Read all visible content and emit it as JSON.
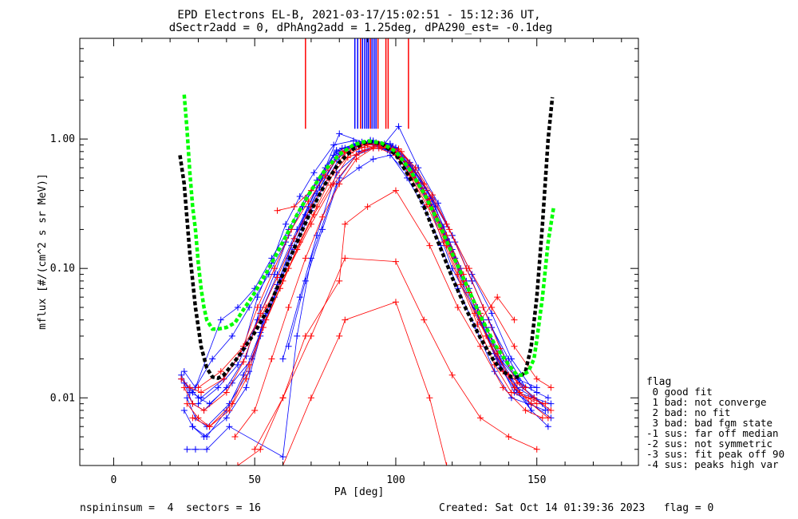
{
  "chart_data": {
    "type": "line",
    "title_line1": "EPD Electrons EL-B, 2021-03-17/15:02:51 - 15:12:36 UT,",
    "title_line2": "dSectr2add = 0, dPhAng2add = 1.25deg, dPA290_est=  -0.1deg",
    "xlabel": "PA [deg]",
    "ylabel": "mflux [#/(cm^2 s sr MeV)]",
    "xlim": [
      -12,
      186
    ],
    "ylim": [
      0.003,
      6
    ],
    "yscale": "log",
    "x_ticks": [
      0,
      50,
      100,
      150
    ],
    "y_ticks": [
      {
        "value": 0.01,
        "label": "0.01"
      },
      {
        "value": 0.1,
        "label": "0.10"
      },
      {
        "value": 1.0,
        "label": "1.00"
      }
    ],
    "marker_lines": [
      {
        "x": 68,
        "color": "red"
      },
      {
        "x": 85.5,
        "color": "blue"
      },
      {
        "x": 86.5,
        "color": "blue"
      },
      {
        "x": 87.5,
        "color": "red"
      },
      {
        "x": 88.2,
        "color": "blue"
      },
      {
        "x": 89.0,
        "color": "blue"
      },
      {
        "x": 89.7,
        "color": "blue"
      },
      {
        "x": 90.3,
        "color": "blue"
      },
      {
        "x": 91.0,
        "color": "red"
      },
      {
        "x": 91.6,
        "color": "blue"
      },
      {
        "x": 92.3,
        "color": "blue"
      },
      {
        "x": 93.0,
        "color": "blue"
      },
      {
        "x": 93.7,
        "color": "red"
      },
      {
        "x": 96.5,
        "color": "red"
      },
      {
        "x": 97.3,
        "color": "red"
      },
      {
        "x": 104.5,
        "color": "red"
      }
    ],
    "fit_curves": [
      {
        "color": "#000000",
        "x": [
          23.5,
          25,
          27,
          29,
          31,
          33,
          35,
          37,
          39,
          42,
          45,
          50,
          55,
          60,
          65,
          70,
          75,
          80,
          85,
          90,
          95,
          100,
          105,
          110,
          115,
          120,
          125,
          130,
          135,
          138,
          141,
          144,
          146,
          148,
          150,
          152,
          154,
          155.5
        ],
        "y": [
          0.75,
          0.45,
          0.13,
          0.05,
          0.025,
          0.017,
          0.0145,
          0.0142,
          0.015,
          0.018,
          0.022,
          0.032,
          0.05,
          0.09,
          0.16,
          0.28,
          0.45,
          0.66,
          0.84,
          0.96,
          0.92,
          0.76,
          0.5,
          0.3,
          0.16,
          0.085,
          0.048,
          0.029,
          0.019,
          0.016,
          0.0145,
          0.0145,
          0.016,
          0.025,
          0.06,
          0.22,
          1.0,
          2.1
        ]
      },
      {
        "color": "#00ff00",
        "x": [
          25,
          26,
          27,
          28,
          29,
          30,
          31,
          32,
          33,
          35,
          37,
          40,
          43,
          46,
          50,
          55,
          60,
          65,
          70,
          75,
          80,
          85,
          90,
          95,
          100,
          105,
          110,
          115,
          120,
          125,
          130,
          135,
          140,
          143,
          145,
          147,
          149,
          150,
          152,
          154,
          156
        ],
        "y": [
          2.2,
          1.2,
          0.55,
          0.3,
          0.2,
          0.11,
          0.07,
          0.05,
          0.04,
          0.034,
          0.034,
          0.035,
          0.038,
          0.048,
          0.065,
          0.1,
          0.16,
          0.26,
          0.4,
          0.58,
          0.76,
          0.9,
          0.97,
          0.93,
          0.8,
          0.58,
          0.38,
          0.23,
          0.13,
          0.075,
          0.043,
          0.026,
          0.018,
          0.015,
          0.015,
          0.016,
          0.02,
          0.028,
          0.06,
          0.16,
          0.3
        ]
      }
    ],
    "series": [
      {
        "color": "#0000ff",
        "x": [
          25,
          28,
          32,
          40,
          47,
          52,
          57,
          62,
          67,
          72,
          79,
          87,
          92,
          99,
          106,
          112,
          118,
          124,
          130,
          137,
          143,
          149,
          154
        ],
        "y": [
          0.013,
          0.009,
          0.008,
          0.012,
          0.021,
          0.05,
          0.09,
          0.18,
          0.3,
          0.48,
          0.82,
          0.92,
          0.95,
          0.85,
          0.55,
          0.33,
          0.17,
          0.08,
          0.04,
          0.018,
          0.012,
          0.01,
          0.008
        ]
      },
      {
        "color": "#0000ff",
        "x": [
          26,
          29,
          33,
          41,
          48,
          53,
          58,
          63,
          68,
          73,
          80,
          86,
          91,
          98,
          105,
          111,
          117,
          123,
          129,
          136,
          142,
          148,
          155
        ],
        "y": [
          0.01,
          0.007,
          0.006,
          0.009,
          0.016,
          0.04,
          0.075,
          0.15,
          0.26,
          0.42,
          0.78,
          0.9,
          0.96,
          0.9,
          0.62,
          0.36,
          0.19,
          0.09,
          0.045,
          0.02,
          0.011,
          0.009,
          0.007
        ]
      },
      {
        "color": "#0000ff",
        "x": [
          24,
          27,
          31,
          39,
          46,
          51,
          56,
          61,
          66,
          71,
          78,
          85,
          90,
          97,
          104,
          110,
          116,
          122,
          128,
          135,
          141,
          147,
          153
        ],
        "y": [
          0.015,
          0.011,
          0.01,
          0.014,
          0.024,
          0.06,
          0.11,
          0.22,
          0.36,
          0.55,
          0.9,
          0.97,
          0.92,
          0.82,
          0.5,
          0.3,
          0.15,
          0.07,
          0.036,
          0.016,
          0.01,
          0.009,
          0.008
        ]
      },
      {
        "color": "#0000ff",
        "x": [
          25,
          28,
          32,
          40,
          47,
          52,
          57,
          62,
          67,
          72,
          79,
          86,
          91,
          98,
          105,
          111,
          117,
          123,
          129,
          136,
          142,
          148,
          154
        ],
        "y": [
          0.008,
          0.006,
          0.005,
          0.007,
          0.012,
          0.03,
          0.06,
          0.12,
          0.22,
          0.38,
          0.7,
          0.88,
          0.98,
          0.92,
          0.66,
          0.4,
          0.21,
          0.1,
          0.05,
          0.022,
          0.012,
          0.008,
          0.006
        ]
      },
      {
        "color": "#0000ff",
        "x": [
          27,
          30,
          34,
          42,
          49,
          54,
          59,
          64,
          69,
          74,
          81,
          87,
          92,
          99,
          106,
          112,
          118,
          124,
          130,
          137,
          143,
          149,
          155
        ],
        "y": [
          0.012,
          0.01,
          0.009,
          0.013,
          0.02,
          0.045,
          0.085,
          0.17,
          0.3,
          0.5,
          0.85,
          0.93,
          0.9,
          0.8,
          0.52,
          0.31,
          0.16,
          0.075,
          0.038,
          0.017,
          0.011,
          0.01,
          0.009
        ]
      },
      {
        "color": "#0000ff",
        "x": [
          26,
          29,
          33,
          41,
          60,
          65,
          70,
          79,
          87,
          92,
          98,
          110,
          120,
          137,
          148
        ],
        "y": [
          0.004,
          0.004,
          0.004,
          0.006,
          0.0035,
          0.03,
          0.12,
          0.45,
          0.6,
          0.7,
          0.75,
          0.4,
          0.1,
          0.02,
          0.008
        ]
      },
      {
        "color": "#0000ff",
        "x": [
          25,
          29,
          38,
          44,
          50,
          56,
          62,
          68,
          75,
          80,
          88,
          95,
          102,
          108,
          114,
          120,
          126,
          132,
          138,
          144,
          150,
          154
        ],
        "y": [
          0.016,
          0.012,
          0.04,
          0.05,
          0.07,
          0.12,
          0.2,
          0.35,
          0.6,
          1.1,
          0.95,
          0.88,
          0.7,
          0.45,
          0.26,
          0.14,
          0.07,
          0.035,
          0.02,
          0.013,
          0.011,
          0.01
        ]
      },
      {
        "color": "#0000ff",
        "x": [
          28,
          33,
          40,
          46,
          52,
          58,
          64,
          70,
          76,
          82,
          89,
          96,
          101,
          108,
          115,
          121,
          127,
          133,
          139,
          145,
          152
        ],
        "y": [
          0.006,
          0.005,
          0.008,
          0.015,
          0.032,
          0.07,
          0.14,
          0.28,
          0.5,
          0.85,
          0.9,
          0.92,
          1.25,
          0.6,
          0.32,
          0.16,
          0.08,
          0.04,
          0.02,
          0.012,
          0.009
        ]
      },
      {
        "color": "#0000ff",
        "x": [
          24,
          28,
          35,
          42,
          48,
          55,
          61,
          67,
          73,
          79,
          86,
          93,
          100,
          107,
          113,
          119,
          125,
          131,
          137,
          143,
          150
        ],
        "y": [
          0.014,
          0.011,
          0.02,
          0.03,
          0.05,
          0.09,
          0.16,
          0.3,
          0.5,
          0.8,
          0.92,
          0.94,
          0.85,
          0.55,
          0.3,
          0.16,
          0.08,
          0.04,
          0.02,
          0.014,
          0.012
        ]
      },
      {
        "color": "#0000ff",
        "x": [
          60,
          66,
          72,
          79,
          86,
          92,
          99,
          106,
          113,
          120,
          127,
          134,
          140,
          146
        ],
        "y": [
          0.02,
          0.06,
          0.18,
          0.55,
          0.75,
          0.85,
          0.82,
          0.58,
          0.34,
          0.18,
          0.08,
          0.035,
          0.02,
          0.012
        ]
      },
      {
        "color": "#0000ff",
        "x": [
          62,
          68,
          74,
          80,
          87,
          94,
          100,
          107,
          114,
          121,
          128,
          135,
          141
        ],
        "y": [
          0.025,
          0.08,
          0.2,
          0.5,
          0.8,
          0.9,
          0.86,
          0.6,
          0.3,
          0.12,
          0.05,
          0.022,
          0.014
        ]
      },
      {
        "color": "#0000ff",
        "x": [
          30,
          37,
          44,
          51,
          58,
          65,
          72,
          78,
          85,
          92,
          99,
          106,
          113,
          120,
          127,
          134,
          141,
          148
        ],
        "y": [
          0.009,
          0.012,
          0.018,
          0.04,
          0.09,
          0.2,
          0.42,
          0.75,
          0.88,
          0.97,
          0.88,
          0.6,
          0.35,
          0.18,
          0.09,
          0.045,
          0.02,
          0.012
        ]
      },
      {
        "color": "#ff0000",
        "x": [
          25,
          28,
          32,
          40,
          46,
          52,
          58,
          64,
          70,
          76,
          82,
          88,
          94,
          100,
          106,
          112,
          118,
          124,
          130,
          136,
          142,
          148,
          154
        ],
        "y": [
          0.012,
          0.009,
          0.008,
          0.011,
          0.019,
          0.045,
          0.085,
          0.17,
          0.3,
          0.5,
          0.78,
          0.86,
          0.88,
          0.8,
          0.55,
          0.34,
          0.18,
          0.09,
          0.045,
          0.022,
          0.012,
          0.009,
          0.007
        ]
      },
      {
        "color": "#ff0000",
        "x": [
          26,
          30,
          34,
          41,
          47,
          53,
          59,
          65,
          71,
          77,
          83,
          89,
          95,
          101,
          107,
          113,
          119,
          125,
          131,
          137,
          143,
          149,
          155
        ],
        "y": [
          0.009,
          0.007,
          0.006,
          0.008,
          0.014,
          0.035,
          0.07,
          0.14,
          0.26,
          0.44,
          0.72,
          0.82,
          0.86,
          0.84,
          0.6,
          0.37,
          0.2,
          0.1,
          0.05,
          0.024,
          0.013,
          0.01,
          0.008
        ]
      },
      {
        "color": "#ff0000",
        "x": [
          24,
          27,
          31,
          39,
          45,
          51,
          57,
          63,
          69,
          75,
          81,
          87,
          93,
          99,
          105,
          111,
          117,
          123,
          129,
          135,
          141,
          147,
          153
        ],
        "y": [
          0.014,
          0.012,
          0.011,
          0.014,
          0.022,
          0.05,
          0.1,
          0.2,
          0.33,
          0.52,
          0.8,
          0.9,
          0.92,
          0.84,
          0.52,
          0.31,
          0.16,
          0.075,
          0.037,
          0.018,
          0.011,
          0.01,
          0.009
        ]
      },
      {
        "color": "#ff0000",
        "x": [
          43,
          50,
          56,
          62,
          68,
          74,
          80,
          86,
          92,
          98,
          104,
          110,
          116,
          122,
          128,
          134,
          140,
          146
        ],
        "y": [
          0.005,
          0.008,
          0.02,
          0.05,
          0.12,
          0.25,
          0.45,
          0.7,
          0.85,
          0.85,
          0.65,
          0.4,
          0.2,
          0.09,
          0.045,
          0.025,
          0.015,
          0.012
        ]
      },
      {
        "color": "#ff0000",
        "x": [
          44,
          52,
          60,
          68,
          80,
          82,
          90,
          100,
          112,
          122,
          130,
          138,
          146,
          152
        ],
        "y": [
          0.003,
          0.004,
          0.01,
          0.03,
          0.08,
          0.22,
          0.3,
          0.4,
          0.15,
          0.05,
          0.025,
          0.012,
          0.008,
          0.007
        ]
      },
      {
        "color": "#ff0000",
        "x": [
          50,
          60,
          70,
          82,
          100,
          110,
          120,
          130,
          140,
          150
        ],
        "y": [
          0.004,
          0.01,
          0.03,
          0.12,
          0.113,
          0.04,
          0.015,
          0.007,
          0.005,
          0.004
        ]
      },
      {
        "color": "#ff0000",
        "x": [
          60,
          70,
          80,
          82,
          100,
          112,
          118
        ],
        "y": [
          0.003,
          0.01,
          0.03,
          0.04,
          0.055,
          0.01,
          0.003
        ]
      },
      {
        "color": "#ff0000",
        "x": [
          28,
          34,
          42,
          48,
          54,
          60,
          66,
          72,
          78,
          84,
          90,
          96,
          102,
          108,
          114,
          120,
          126,
          132,
          138,
          144,
          150
        ],
        "y": [
          0.007,
          0.006,
          0.009,
          0.018,
          0.04,
          0.08,
          0.16,
          0.3,
          0.55,
          0.78,
          0.9,
          0.9,
          0.72,
          0.46,
          0.26,
          0.13,
          0.065,
          0.03,
          0.016,
          0.011,
          0.009
        ]
      },
      {
        "color": "#ff0000",
        "x": [
          30,
          38,
          46,
          54,
          62,
          70,
          78,
          86,
          94,
          102,
          110,
          118,
          126,
          134,
          142,
          150,
          155
        ],
        "y": [
          0.012,
          0.016,
          0.025,
          0.05,
          0.1,
          0.22,
          0.45,
          0.75,
          0.92,
          0.8,
          0.45,
          0.22,
          0.1,
          0.05,
          0.025,
          0.014,
          0.012
        ]
      },
      {
        "color": "#ff0000",
        "x": [
          58,
          64,
          70,
          76,
          82,
          88,
          94,
          100,
          106,
          112,
          118,
          124,
          130,
          136,
          142
        ],
        "y": [
          0.28,
          0.3,
          0.4,
          0.6,
          0.8,
          0.9,
          0.85,
          0.75,
          0.5,
          0.3,
          0.15,
          0.08,
          0.04,
          0.06,
          0.04
        ]
      }
    ],
    "legend": {
      "title": "flag",
      "items": [
        " 0 good fit",
        " 1 bad: not converge",
        " 2 bad: no fit",
        " 3 bad: bad fgm state",
        "-1 sus: far off median",
        "-2 sus: not symmetric",
        "-3 sus: fit peak off 90",
        "-4 sus: peaks high var"
      ]
    },
    "footer_left": "nspininsum =  4  sectors = 16",
    "footer_right": "Created: Sat Oct 14 01:39:36 2023   flag = 0"
  }
}
